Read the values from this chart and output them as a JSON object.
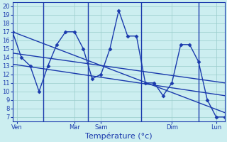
{
  "xlabel": "Température (°c)",
  "bg_color": "#cceef0",
  "grid_color": "#99cccc",
  "line_color": "#1a3aad",
  "spine_color": "#1a3aad",
  "y_ticks": [
    7,
    8,
    9,
    10,
    11,
    12,
    13,
    14,
    15,
    16,
    17,
    18,
    19,
    20
  ],
  "ylim": [
    6.5,
    20.5
  ],
  "xlim": [
    0,
    24
  ],
  "x_tick_positions": [
    0.5,
    7,
    10,
    18,
    23
  ],
  "x_tick_labels": [
    "Ven",
    "Mar",
    "Sam",
    "Dim",
    "Lun"
  ],
  "vlines": [
    3.5,
    8.5,
    14.5,
    21
  ],
  "temp_x": [
    0,
    1,
    2,
    3,
    4,
    5,
    6,
    7,
    8,
    9,
    10,
    11,
    12,
    13,
    14,
    15,
    16,
    17,
    18,
    19,
    20,
    21,
    22,
    23,
    24
  ],
  "temp_y": [
    17,
    14,
    13,
    10,
    13,
    15.5,
    17,
    17,
    15,
    11.5,
    12,
    15,
    19.5,
    16.5,
    16.5,
    11,
    11,
    9.5,
    11,
    15.5,
    15.5,
    13.5,
    9,
    7,
    7
  ],
  "trend1_x": [
    0,
    24
  ],
  "trend1_y": [
    17,
    7.5
  ],
  "trend2_x": [
    0,
    24
  ],
  "trend2_y": [
    14.5,
    11
  ],
  "trend3_x": [
    0,
    24
  ],
  "trend3_y": [
    13.2,
    9.5
  ],
  "tick_fontsize": 6,
  "xlabel_fontsize": 8
}
